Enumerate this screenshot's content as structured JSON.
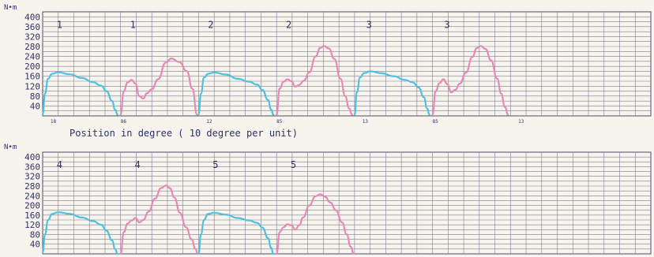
{
  "colors": {
    "push": "#4ec1e0",
    "pull": "#e888b6",
    "grid": "#7d7d90",
    "text": "#30306a",
    "background": "#f7f4ee"
  },
  "chart_data": [
    {
      "type": "line",
      "panel": "top",
      "ylabel": "N•m",
      "xlabel": "Position in degree ( 10  degree per unit)",
      "yticks": [
        40,
        80,
        120,
        160,
        200,
        240,
        280,
        320,
        360,
        400
      ],
      "ylim": [
        0,
        420
      ],
      "xlim": [
        0,
        78
      ],
      "grid": true,
      "xtick_labels": [
        {
          "x": 1,
          "text": "18"
        },
        {
          "x": 10,
          "text": "86"
        },
        {
          "x": 21,
          "text": "12"
        },
        {
          "x": 30,
          "text": "85"
        },
        {
          "x": 41,
          "text": "13"
        },
        {
          "x": 50,
          "text": "85"
        },
        {
          "x": 61,
          "text": "13"
        }
      ],
      "cycle_labels": [
        {
          "x": 1.8,
          "text": "1"
        },
        {
          "x": 11.2,
          "text": "1"
        },
        {
          "x": 21.2,
          "text": "2"
        },
        {
          "x": 31.2,
          "text": "2"
        },
        {
          "x": 41.5,
          "text": "3"
        },
        {
          "x": 51.5,
          "text": "3"
        }
      ],
      "series": [
        {
          "kind": "push",
          "x": [
            0,
            0.3,
            0.7,
            1.2,
            2,
            3.5,
            5,
            6.5,
            7.5,
            8.2,
            8.9,
            9.3,
            9.6
          ],
          "y": [
            5,
            90,
            150,
            170,
            176,
            168,
            153,
            136,
            122,
            100,
            60,
            25,
            5
          ]
        },
        {
          "kind": "pull",
          "x": [
            10,
            10.4,
            10.9,
            11.4,
            11.9,
            12.4,
            12.9,
            13.4,
            14,
            14.8,
            15.8,
            16.5,
            17.5,
            18.5,
            19.2,
            19.8
          ],
          "y": [
            5,
            100,
            135,
            145,
            130,
            80,
            70,
            92,
            108,
            148,
            215,
            232,
            218,
            180,
            110,
            5
          ]
        },
        {
          "kind": "push",
          "x": [
            20,
            20.3,
            20.7,
            21.2,
            22,
            23.5,
            25,
            26.5,
            27.5,
            28.2,
            28.9,
            29.3,
            29.6
          ],
          "y": [
            5,
            90,
            155,
            170,
            175,
            167,
            150,
            138,
            126,
            104,
            64,
            25,
            5
          ]
        },
        {
          "kind": "pull",
          "x": [
            30,
            30.4,
            30.9,
            31.4,
            31.9,
            32.4,
            32.9,
            33.5,
            34.2,
            35,
            35.6,
            36.1,
            36.7,
            37.4,
            38.2,
            38.8,
            39.3,
            39.7
          ],
          "y": [
            5,
            110,
            138,
            148,
            140,
            118,
            125,
            142,
            176,
            240,
            274,
            282,
            272,
            230,
            150,
            80,
            30,
            5
          ]
        },
        {
          "kind": "push",
          "x": [
            40,
            40.3,
            40.7,
            41.2,
            42,
            43.5,
            45,
            46.5,
            47.5,
            48.2,
            48.9,
            49.3,
            49.6
          ],
          "y": [
            5,
            95,
            155,
            172,
            180,
            172,
            160,
            145,
            135,
            115,
            75,
            30,
            5
          ]
        },
        {
          "kind": "pull",
          "x": [
            50,
            50.4,
            50.9,
            51.4,
            51.9,
            52.4,
            52.9,
            53.5,
            54.3,
            55.1,
            55.7,
            56.2,
            56.8,
            57.5,
            58.3,
            58.8,
            59.3,
            59.7
          ],
          "y": [
            5,
            100,
            132,
            148,
            128,
            95,
            105,
            130,
            175,
            238,
            274,
            282,
            270,
            224,
            150,
            90,
            35,
            5
          ]
        }
      ]
    },
    {
      "type": "line",
      "panel": "bottom",
      "ylabel": "N•m",
      "xlabel": "",
      "yticks": [
        40,
        80,
        120,
        160,
        200,
        240,
        280,
        320,
        360,
        400
      ],
      "ylim": [
        0,
        420
      ],
      "xlim": [
        0,
        78
      ],
      "grid": true,
      "xtick_labels": [],
      "cycle_labels": [
        {
          "x": 1.8,
          "text": "4"
        },
        {
          "x": 11.8,
          "text": "4"
        },
        {
          "x": 21.8,
          "text": "5"
        },
        {
          "x": 31.8,
          "text": "5"
        }
      ],
      "series": [
        {
          "kind": "push",
          "x": [
            0,
            0.3,
            0.7,
            1.2,
            2,
            3.5,
            5,
            6.5,
            7.5,
            8.2,
            8.9,
            9.3,
            9.6
          ],
          "y": [
            5,
            80,
            140,
            165,
            172,
            165,
            150,
            135,
            120,
            95,
            55,
            20,
            0
          ]
        },
        {
          "kind": "pull",
          "x": [
            10,
            10.4,
            10.9,
            11.4,
            11.9,
            12.4,
            12.9,
            13.6,
            14.4,
            15.2,
            15.8,
            16.3,
            16.9,
            17.6,
            18.4,
            19.1,
            19.6,
            19.9
          ],
          "y": [
            0,
            90,
            125,
            138,
            148,
            130,
            140,
            175,
            228,
            272,
            282,
            272,
            232,
            170,
            110,
            60,
            20,
            0
          ]
        },
        {
          "kind": "push",
          "x": [
            20,
            20.3,
            20.7,
            21.2,
            22,
            23.5,
            25,
            26.5,
            27.5,
            28.2,
            28.9,
            29.3,
            29.6
          ],
          "y": [
            0,
            80,
            140,
            165,
            170,
            162,
            148,
            138,
            128,
            108,
            65,
            25,
            0
          ]
        },
        {
          "kind": "pull",
          "x": [
            30,
            30.4,
            30.9,
            31.4,
            31.9,
            32.4,
            32.9,
            33.4,
            34.2,
            35,
            35.6,
            36.2,
            36.9,
            37.6,
            38.4,
            39,
            39.5,
            39.9
          ],
          "y": [
            0,
            90,
            110,
            122,
            118,
            100,
            118,
            150,
            200,
            238,
            246,
            236,
            212,
            180,
            130,
            80,
            30,
            0
          ]
        }
      ]
    }
  ]
}
